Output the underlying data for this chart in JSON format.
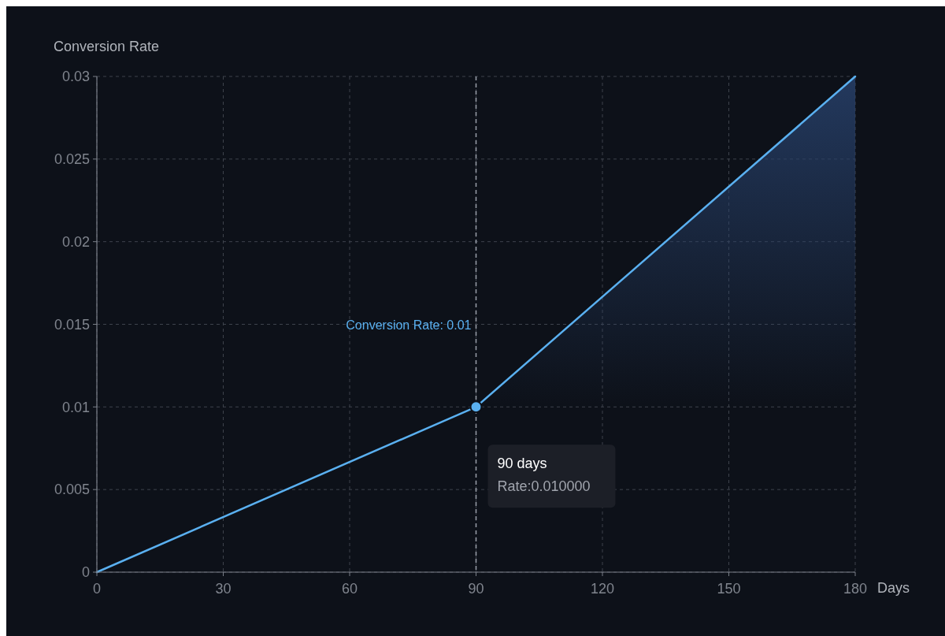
{
  "chart_data": {
    "type": "line",
    "xlabel": "Days",
    "ylabel": "Conversion Rate",
    "xlim": [
      0,
      180
    ],
    "xticks": [
      0,
      30,
      60,
      90,
      120,
      150,
      180
    ],
    "ylim": [
      0,
      0.03
    ],
    "yticks": [
      0,
      0.005,
      0.01,
      0.015,
      0.02,
      0.025,
      0.03
    ],
    "grid": true,
    "series": [
      {
        "type": "area",
        "x": [
          90,
          180
        ],
        "values": [
          0.01,
          0.03
        ],
        "color": "#27406a"
      },
      {
        "x": [
          0,
          90,
          180
        ],
        "values": [
          0,
          0.01,
          0.03
        ],
        "color": "#5ab0f0"
      },
      {
        "type": "scatter",
        "x": [
          90
        ],
        "values": [
          0.01
        ],
        "color": "#5ab0f0"
      }
    ],
    "ref_lines": [
      {
        "axis": "x",
        "value": 90,
        "color": "#9aa0aa",
        "line_style": "dashed"
      }
    ],
    "annotations": [
      "Conversion Rate: 0.01",
      "90 days",
      "Rate:0.010000"
    ]
  }
}
